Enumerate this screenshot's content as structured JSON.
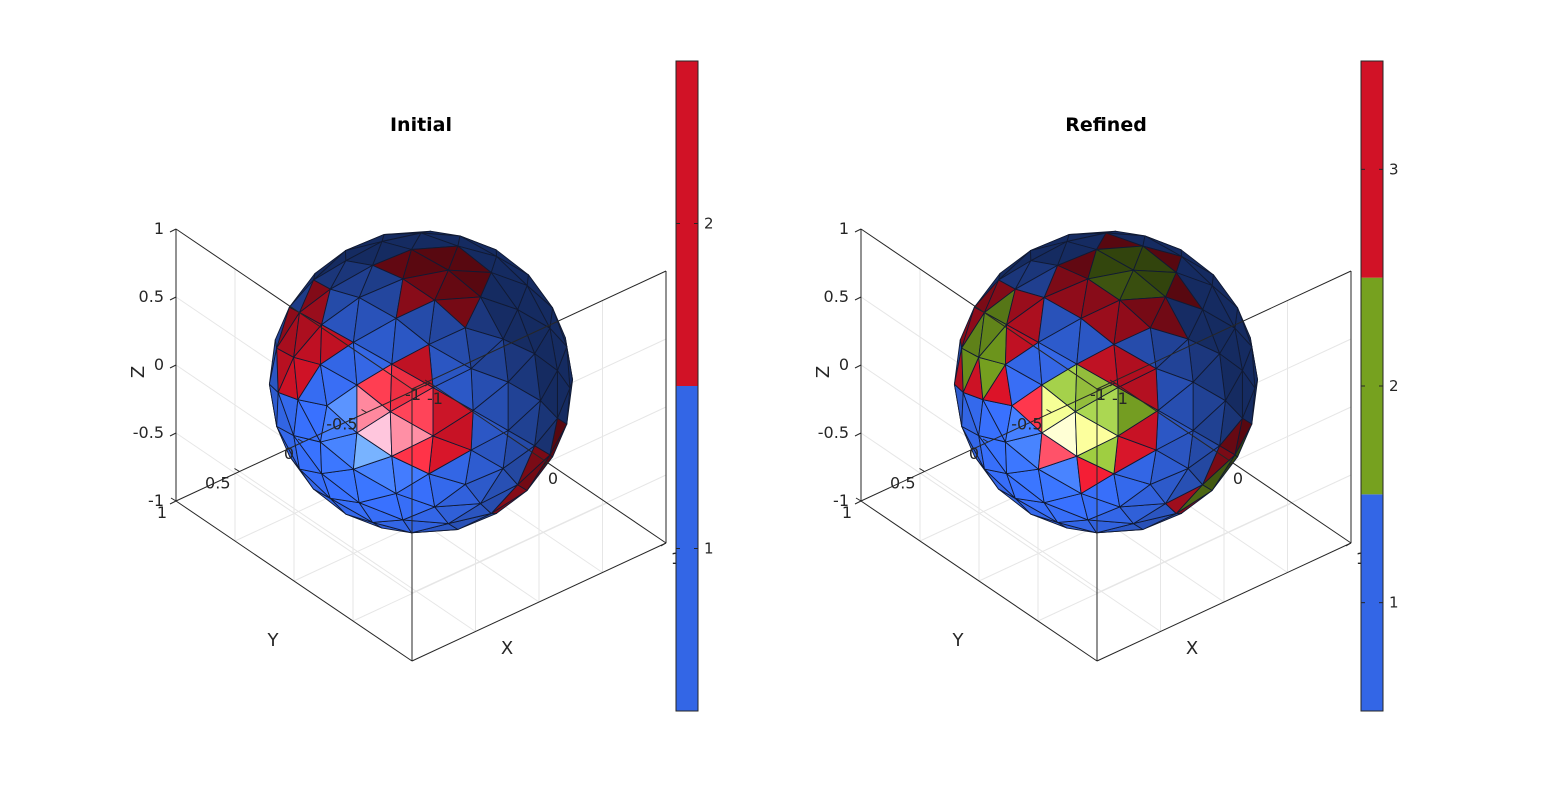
{
  "chart_data": [
    {
      "type": "3d-mesh",
      "title": "Initial",
      "xlabel": "X",
      "ylabel": "Y",
      "zlabel": "Z",
      "xlim": [
        -1,
        1
      ],
      "ylim": [
        -1,
        1
      ],
      "zlim": [
        -1,
        1
      ],
      "xticks": [
        "-1",
        "0",
        "1"
      ],
      "yticks": [
        "1",
        "0.5",
        "0",
        "-0.5",
        "-1"
      ],
      "zticks": [
        "1",
        "0.5",
        "0",
        "-0.5",
        "-1"
      ],
      "grid": true,
      "colorbar": {
        "ticks": [
          "2",
          "1"
        ],
        "range": [
          0.5,
          2.5
        ],
        "colors": [
          "#3366e6",
          "#d11226"
        ],
        "tick_values": [
          2,
          1
        ]
      },
      "mesh": {
        "surface": "unit sphere (triangulated icosphere)",
        "level1_color": "#3366e6",
        "level2_color": "#d11226",
        "level3_color": null,
        "shading": "lit",
        "level2_patches": [
          [
            0.15,
            0.75,
            0.7
          ],
          [
            -0.75,
            0.25,
            0.45
          ],
          [
            0.55,
            0.0,
            -0.55
          ],
          [
            0.78,
            -0.62,
            0.05
          ],
          [
            -0.35,
            0.8,
            -0.48
          ],
          [
            -0.1,
            -0.25,
            0.96
          ]
        ],
        "level3_patches": []
      }
    },
    {
      "type": "3d-mesh",
      "title": "Refined",
      "xlabel": "X",
      "ylabel": "Y",
      "zlabel": "Z",
      "xlim": [
        -1,
        1
      ],
      "ylim": [
        -1,
        1
      ],
      "zlim": [
        -1,
        1
      ],
      "xticks": [
        "-1",
        "0",
        "1"
      ],
      "yticks": [
        "1",
        "0.5",
        "0",
        "-0.5",
        "-1"
      ],
      "zticks": [
        "1",
        "0.5",
        "0",
        "-0.5",
        "-1"
      ],
      "grid": true,
      "colorbar": {
        "ticks": [
          "3",
          "2",
          "1"
        ],
        "range": [
          0.5,
          3.5
        ],
        "colors": [
          "#3366e6",
          "#76a11f",
          "#d11226"
        ],
        "tick_values": [
          3,
          2,
          1
        ]
      },
      "mesh": {
        "surface": "unit sphere (triangulated icosphere)",
        "level1_color": "#3366e6",
        "level2_color": "#d11226",
        "level3_color": "#76a11f",
        "shading": "lit",
        "level2_patches": [],
        "level3_patches": [
          [
            0.15,
            0.75,
            0.7
          ],
          [
            -0.75,
            0.25,
            0.45
          ],
          [
            0.55,
            0.0,
            -0.55
          ],
          [
            0.78,
            -0.62,
            0.05
          ],
          [
            -0.35,
            0.8,
            -0.48
          ],
          [
            -0.1,
            -0.25,
            0.96
          ]
        ]
      }
    }
  ]
}
